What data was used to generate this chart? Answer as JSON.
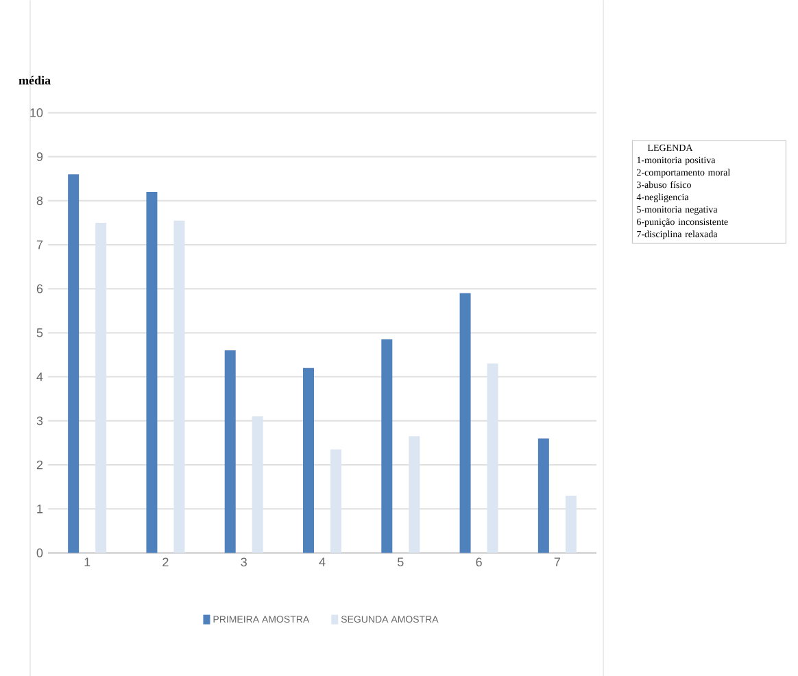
{
  "chart_data": {
    "type": "bar",
    "ylabel": "média",
    "categories": [
      "1",
      "2",
      "3",
      "4",
      "5",
      "6",
      "7"
    ],
    "series": [
      {
        "name": "PRIMEIRA AMOSTRA",
        "color": "#4f81bd",
        "values": [
          8.6,
          8.2,
          4.6,
          4.2,
          4.85,
          5.9,
          2.6
        ]
      },
      {
        "name": "SEGUNDA AMOSTRA",
        "color": "#dce6f2",
        "values": [
          7.5,
          7.55,
          3.1,
          2.35,
          2.65,
          4.3,
          1.3
        ]
      }
    ],
    "ylim": [
      0,
      10
    ],
    "yticks": [
      0,
      1,
      2,
      3,
      4,
      5,
      6,
      7,
      8,
      9,
      10
    ],
    "grid": "y",
    "legend": "bottom",
    "annotations": [
      "LEGENDA",
      "1-monitoria positiva",
      "2-comportamento moral",
      "3-abuso físico",
      "4-negligencia",
      "5-monitoria  negativa",
      "6-punição inconsistente",
      "7-disciplina relaxada"
    ]
  }
}
